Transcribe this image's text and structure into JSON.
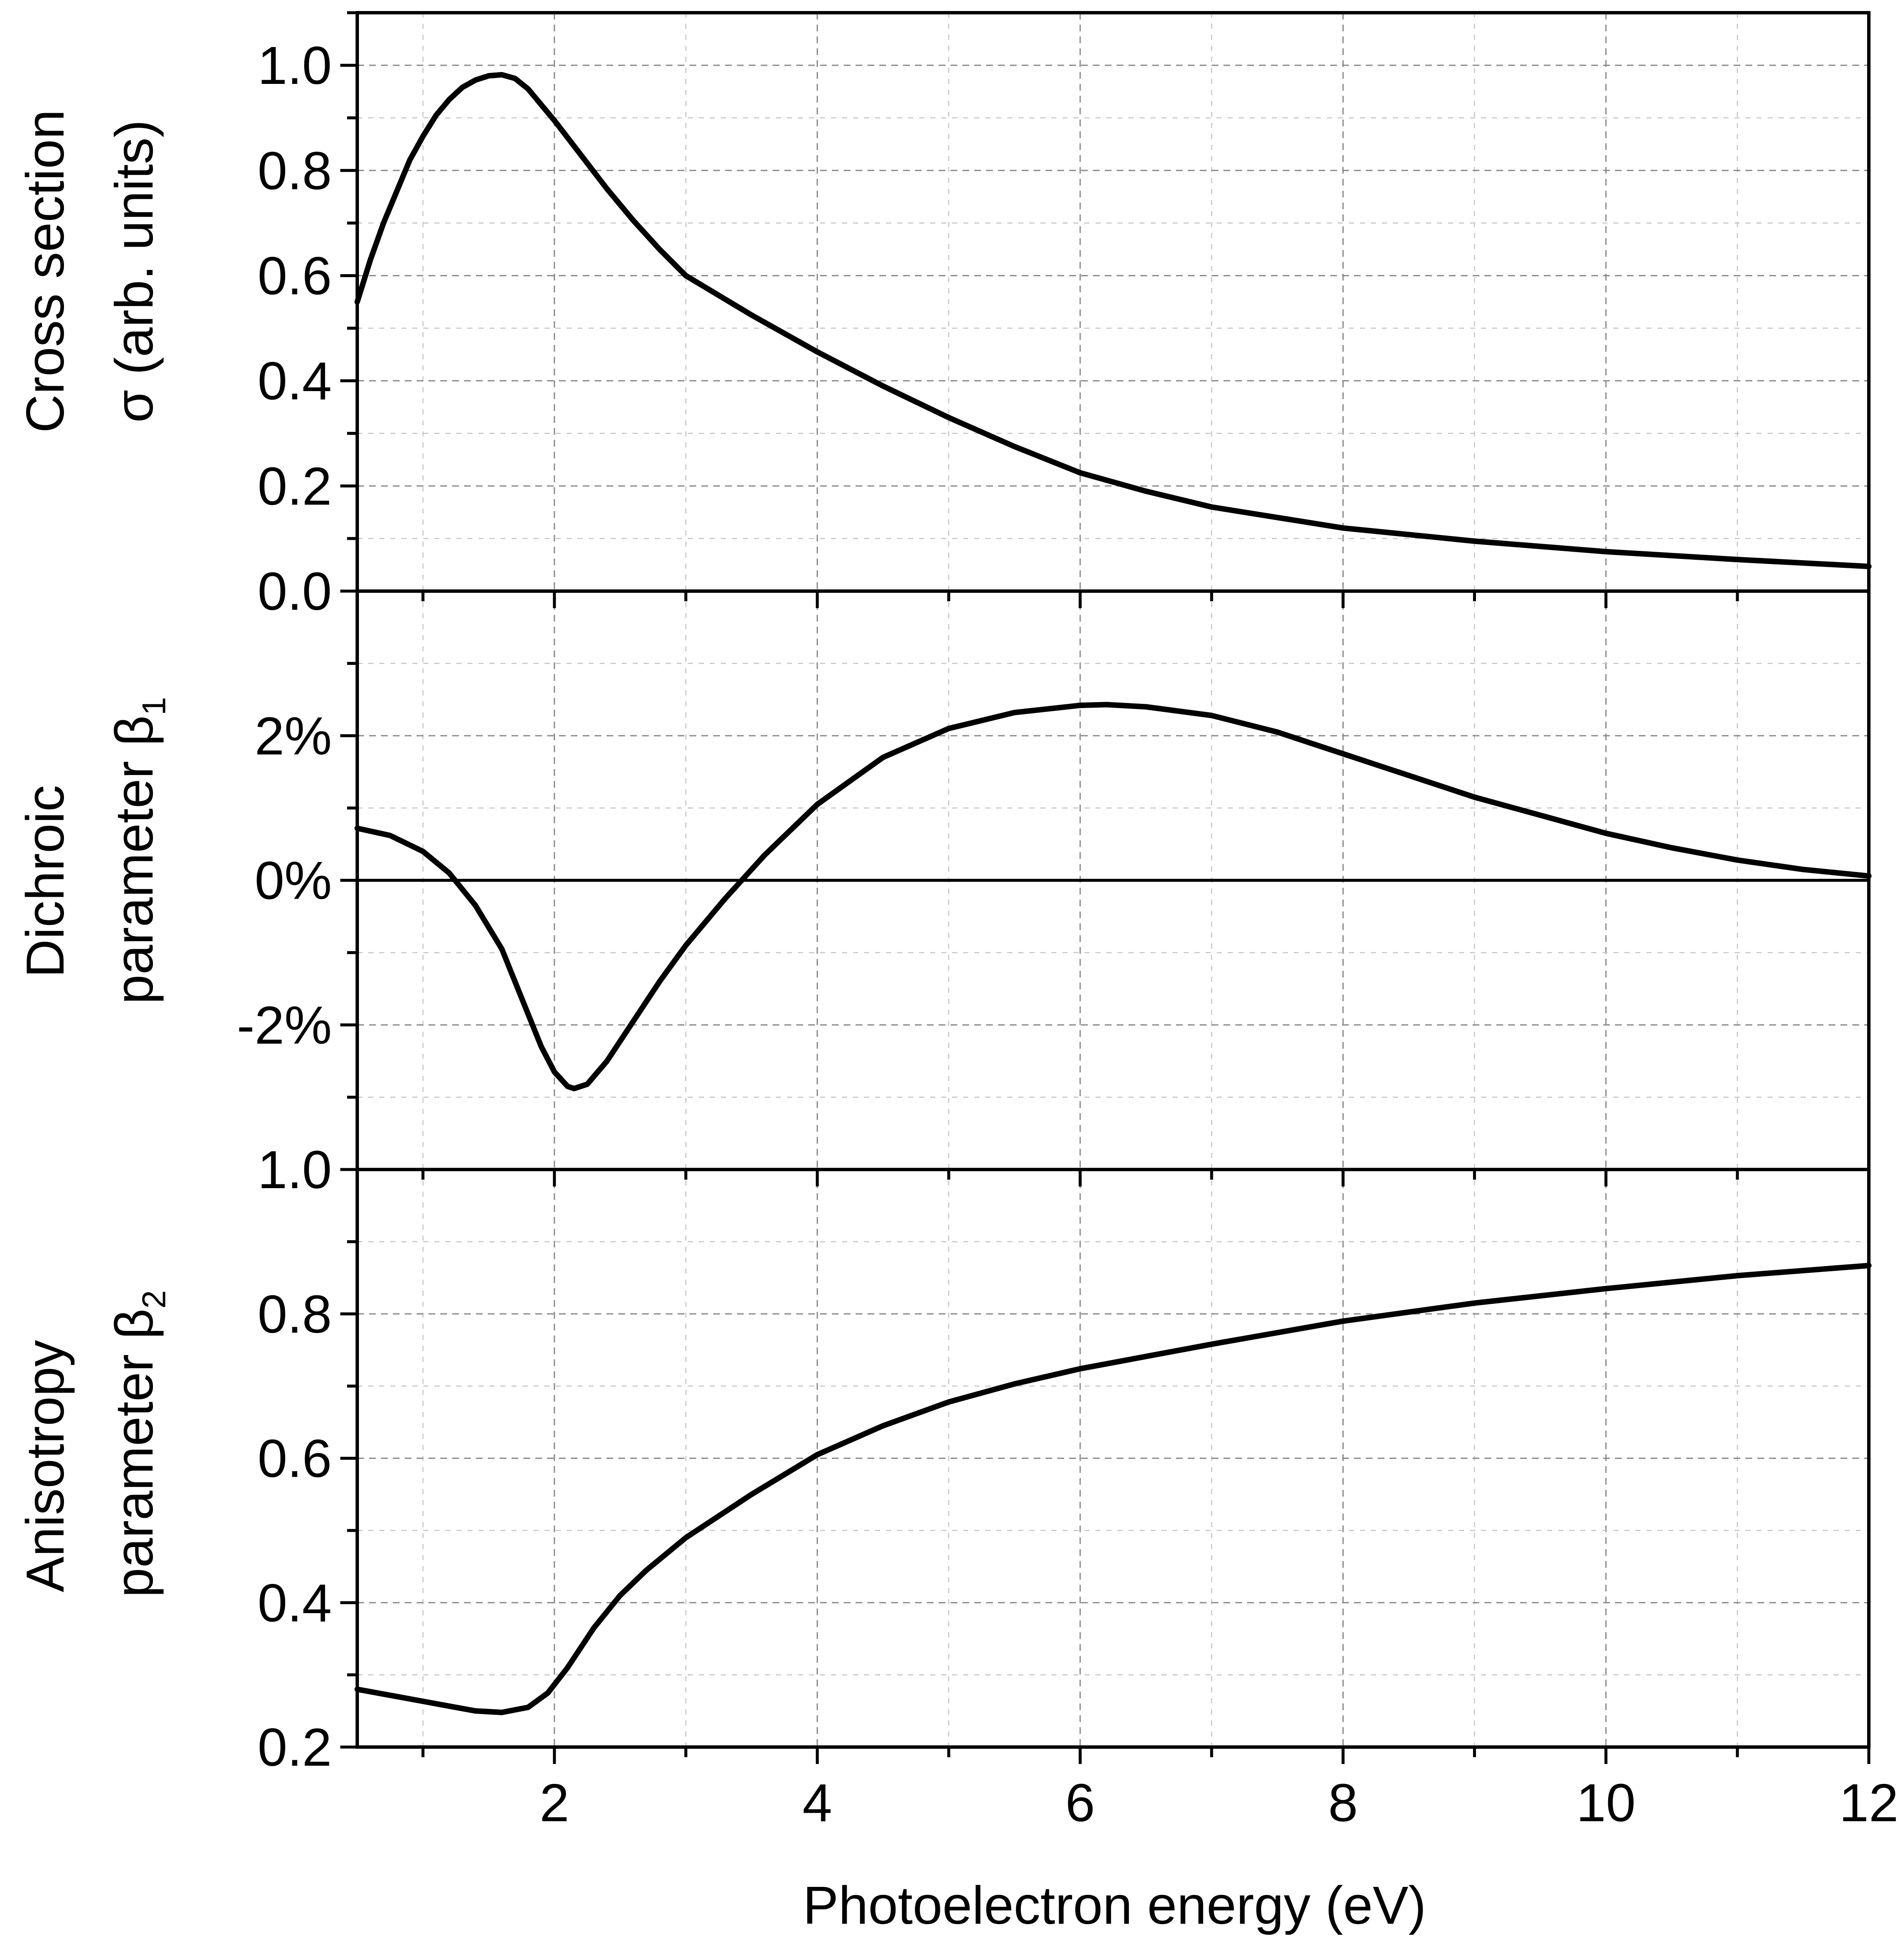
{
  "chart_data": [
    {
      "type": "line",
      "panel": "top",
      "ylabel_line1": "Cross section",
      "ylabel_line2": "σ (arb. units)",
      "xlim": [
        0.5,
        12
      ],
      "ylim": [
        0.0,
        1.1
      ],
      "yticks": [
        0.0,
        0.2,
        0.4,
        0.6,
        0.8,
        1.0
      ],
      "ytick_labels": [
        "0.0",
        "0.2",
        "0.4",
        "0.6",
        "0.8",
        "1.0"
      ],
      "grid": true,
      "series": [
        {
          "name": "Cross section",
          "x": [
            0.5,
            0.6,
            0.7,
            0.8,
            0.9,
            1.0,
            1.1,
            1.2,
            1.3,
            1.4,
            1.5,
            1.6,
            1.7,
            1.8,
            1.9,
            2.0,
            2.2,
            2.4,
            2.6,
            2.8,
            3.0,
            3.5,
            4.0,
            4.5,
            5.0,
            5.5,
            6.0,
            6.5,
            7.0,
            7.5,
            8.0,
            9.0,
            10.0,
            11.0,
            12.0
          ],
          "y": [
            0.55,
            0.63,
            0.7,
            0.76,
            0.82,
            0.865,
            0.905,
            0.935,
            0.958,
            0.972,
            0.98,
            0.982,
            0.975,
            0.955,
            0.925,
            0.895,
            0.83,
            0.765,
            0.705,
            0.65,
            0.6,
            0.525,
            0.455,
            0.39,
            0.33,
            0.275,
            0.225,
            0.19,
            0.16,
            0.14,
            0.12,
            0.095,
            0.075,
            0.06,
            0.047
          ]
        }
      ]
    },
    {
      "type": "line",
      "panel": "middle",
      "ylabel_line1": "Dichroic",
      "ylabel_line2": "parameter β",
      "ylabel_sub": "1",
      "xlim": [
        0.5,
        12
      ],
      "ylim": [
        -4,
        4
      ],
      "yticks": [
        -2,
        0,
        2
      ],
      "ytick_labels": [
        "-2%",
        "0%",
        "2%"
      ],
      "grid": true,
      "series": [
        {
          "name": "Dichroic parameter β1 (%)",
          "x": [
            0.5,
            0.75,
            1.0,
            1.2,
            1.4,
            1.6,
            1.8,
            1.9,
            2.0,
            2.1,
            2.15,
            2.25,
            2.4,
            2.6,
            2.8,
            3.0,
            3.3,
            3.6,
            4.0,
            4.5,
            5.0,
            5.5,
            6.0,
            6.2,
            6.5,
            7.0,
            7.5,
            8.0,
            8.5,
            9.0,
            9.5,
            10.0,
            10.5,
            11.0,
            11.5,
            12.0
          ],
          "y": [
            0.72,
            0.62,
            0.4,
            0.1,
            -0.35,
            -0.95,
            -1.85,
            -2.3,
            -2.65,
            -2.85,
            -2.88,
            -2.82,
            -2.5,
            -1.95,
            -1.4,
            -0.9,
            -0.25,
            0.35,
            1.05,
            1.7,
            2.1,
            2.32,
            2.42,
            2.43,
            2.4,
            2.28,
            2.05,
            1.75,
            1.45,
            1.15,
            0.9,
            0.65,
            0.45,
            0.28,
            0.15,
            0.06
          ]
        }
      ]
    },
    {
      "type": "line",
      "panel": "bottom",
      "ylabel_line1": "Anisotropy",
      "ylabel_line2": "parameter β",
      "ylabel_sub": "2",
      "xlabel": "Photoelectron energy (eV)",
      "xlim": [
        0.5,
        12
      ],
      "ylim": [
        0.2,
        1.0
      ],
      "yticks": [
        0.2,
        0.4,
        0.6,
        0.8,
        1.0
      ],
      "ytick_labels": [
        "0.2",
        "0.4",
        "0.6",
        "0.8",
        "1.0"
      ],
      "xticks": [
        2,
        4,
        6,
        8,
        10,
        12
      ],
      "xtick_labels": [
        "2",
        "4",
        "6",
        "8",
        "10",
        "12"
      ],
      "grid": true,
      "series": [
        {
          "name": "Anisotropy parameter β2",
          "x": [
            0.5,
            0.8,
            1.1,
            1.4,
            1.6,
            1.8,
            1.95,
            2.1,
            2.3,
            2.5,
            2.7,
            3.0,
            3.5,
            4.0,
            4.5,
            5.0,
            5.5,
            6.0,
            7.0,
            8.0,
            9.0,
            10.0,
            11.0,
            12.0
          ],
          "y": [
            0.28,
            0.27,
            0.26,
            0.25,
            0.248,
            0.255,
            0.275,
            0.31,
            0.365,
            0.41,
            0.445,
            0.49,
            0.55,
            0.605,
            0.645,
            0.678,
            0.703,
            0.724,
            0.758,
            0.79,
            0.815,
            0.835,
            0.853,
            0.867
          ]
        }
      ]
    }
  ]
}
